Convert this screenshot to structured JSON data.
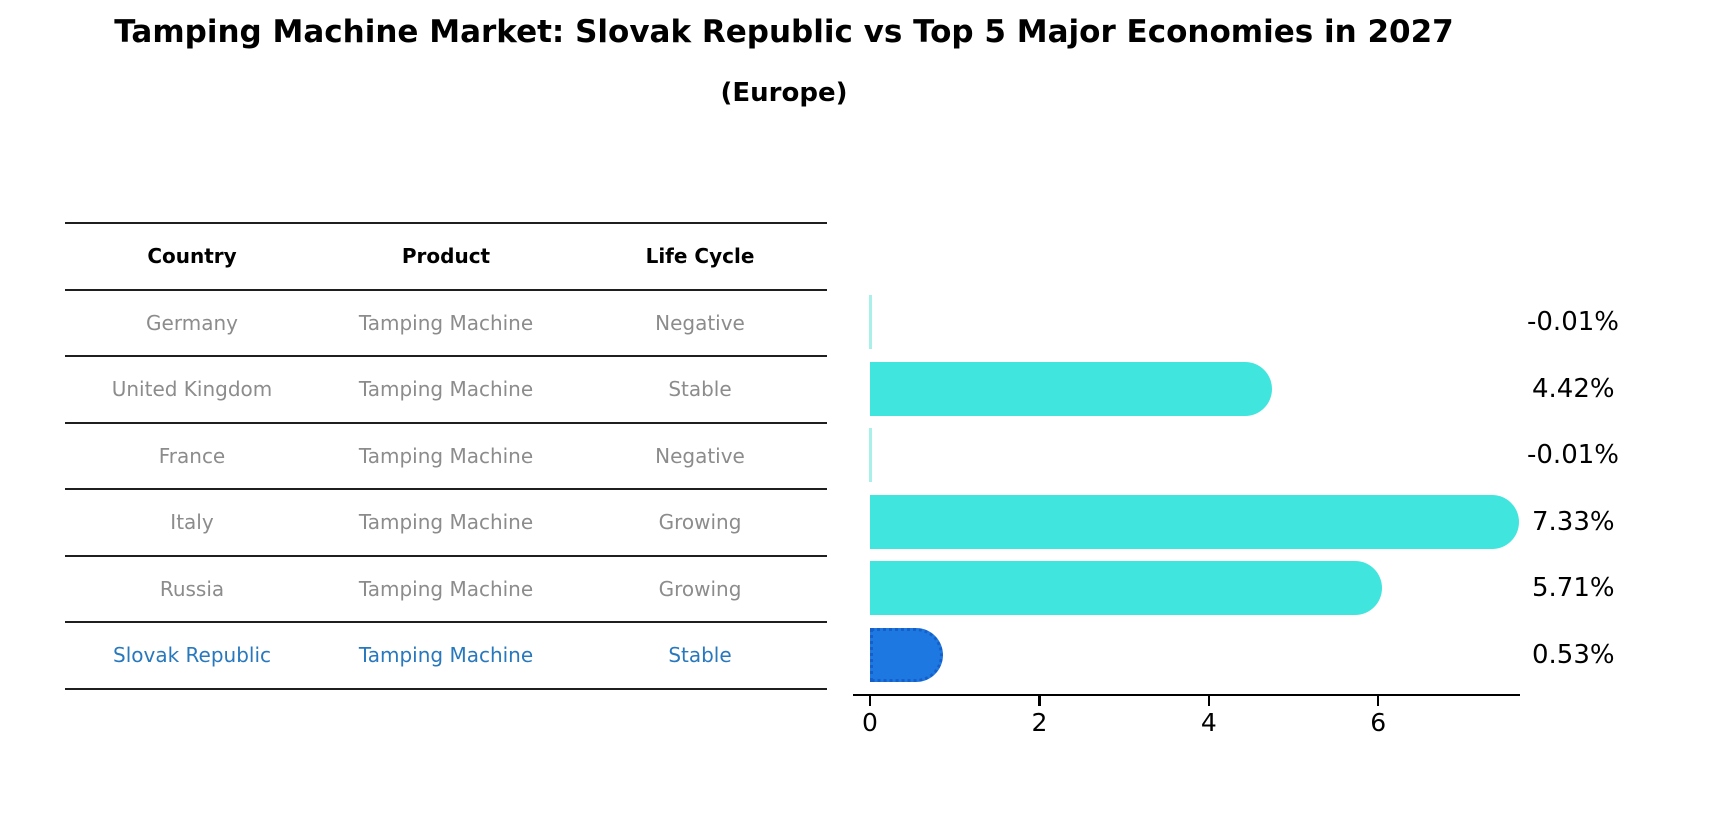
{
  "header": {
    "title": "Tamping Machine Market: Slovak Republic vs Top 5 Major Economies in 2027",
    "subtitle": "(Europe)"
  },
  "table": {
    "headers": [
      "Country",
      "Product",
      "Life Cycle"
    ],
    "rows": [
      {
        "country": "Germany",
        "product": "Tamping Machine",
        "life_cycle": "Negative",
        "highlighted": false
      },
      {
        "country": "United Kingdom",
        "product": "Tamping Machine",
        "life_cycle": "Stable",
        "highlighted": false
      },
      {
        "country": "France",
        "product": "Tamping Machine",
        "life_cycle": "Negative",
        "highlighted": false
      },
      {
        "country": "Italy",
        "product": "Tamping Machine",
        "life_cycle": "Growing",
        "highlighted": false
      },
      {
        "country": "Russia",
        "product": "Tamping Machine",
        "life_cycle": "Growing",
        "highlighted": false
      },
      {
        "country": "Slovak Republic",
        "product": "Tamping Machine",
        "life_cycle": "Stable",
        "highlighted": true
      }
    ]
  },
  "chart_data": {
    "type": "bar",
    "orientation": "horizontal",
    "title": "Tamping Machine Market: Slovak Republic vs Top 5 Major Economies in 2027 (Europe)",
    "categories": [
      "Germany",
      "United Kingdom",
      "France",
      "Italy",
      "Russia",
      "Slovak Republic"
    ],
    "values": [
      -0.01,
      4.42,
      -0.01,
      7.33,
      5.71,
      0.53
    ],
    "value_labels": [
      "-0.01%",
      "4.42%",
      "-0.01%",
      "7.33%",
      "5.71%",
      "0.53%"
    ],
    "xticks": [
      0,
      2,
      4,
      6
    ],
    "xlim": [
      -0.2,
      7.67
    ],
    "highlight_index": 5,
    "grid": false,
    "legend_position": "none"
  },
  "colors": {
    "bar_default": "#40e5dd",
    "bar_negative_edge": "#a9efea",
    "bar_highlight": "#1e78e2",
    "bar_highlight_border": "#1460c8",
    "highlight_text": "#2878be",
    "table_text": "#8c8c8c",
    "header_text": "#000000",
    "line_color": "#1f1f1f"
  }
}
